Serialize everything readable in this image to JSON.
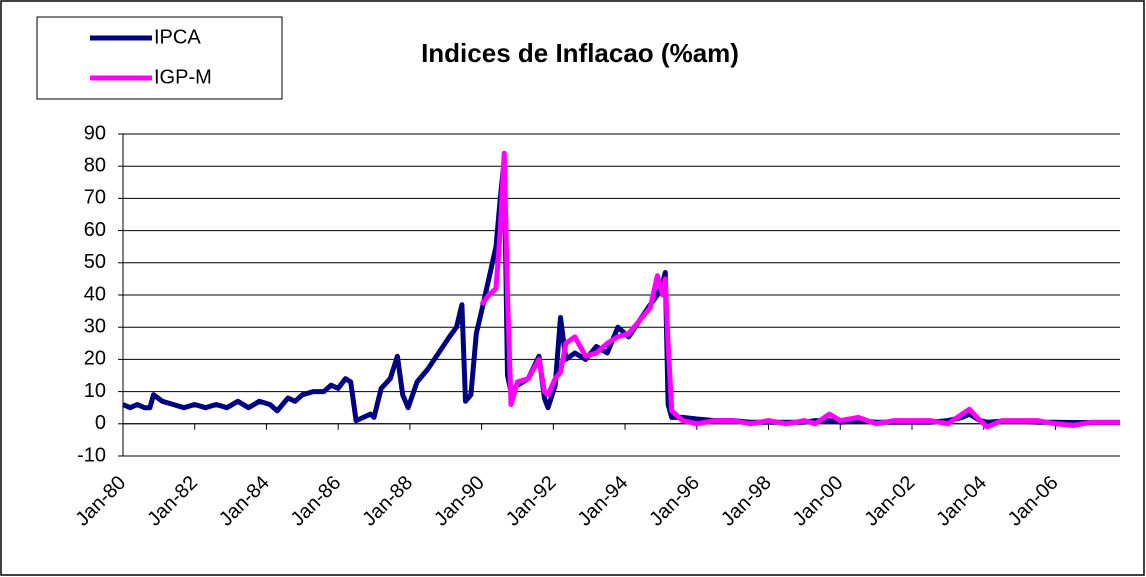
{
  "chart_data": {
    "type": "line",
    "title": "Indices de Inflacao (%am)",
    "x": [
      1980.0,
      1980.2,
      1980.4,
      1980.6,
      1980.75,
      1980.85,
      1981.1,
      1981.4,
      1981.7,
      1982.0,
      1982.3,
      1982.6,
      1982.9,
      1983.2,
      1983.5,
      1983.8,
      1984.1,
      1984.3,
      1984.6,
      1984.8,
      1985.0,
      1985.3,
      1985.6,
      1985.8,
      1986.0,
      1986.2,
      1986.35,
      1986.5,
      1986.7,
      1986.9,
      1987.0,
      1987.2,
      1987.45,
      1987.65,
      1987.8,
      1987.95,
      1988.2,
      1988.5,
      1988.8,
      1989.1,
      1989.3,
      1989.45,
      1989.55,
      1989.7,
      1989.85,
      1990.0,
      1990.2,
      1990.4,
      1990.52,
      1990.63,
      1990.72,
      1990.82,
      1991.0,
      1991.3,
      1991.6,
      1991.75,
      1991.85,
      1992.05,
      1992.2,
      1992.35,
      1992.6,
      1992.9,
      1993.2,
      1993.5,
      1993.8,
      1994.1,
      1994.4,
      1994.7,
      1994.9,
      1995.05,
      1995.12,
      1995.2,
      1995.3,
      1995.6,
      1996.0,
      1996.5,
      1997.0,
      1997.5,
      1998.0,
      1998.5,
      1999.0,
      1999.3,
      1999.7,
      2000.0,
      2000.5,
      2001.0,
      2001.5,
      2002.0,
      2002.5,
      2003.0,
      2003.4,
      2003.6,
      2003.9,
      2004.1,
      2004.5,
      2005.0,
      2005.5,
      2006.0,
      2006.5,
      2007.0,
      2007.5,
      2007.8
    ],
    "series": [
      {
        "name": "IPCA",
        "color": "#000080",
        "values": [
          6,
          5,
          6,
          5,
          5,
          9,
          7,
          6,
          5,
          6,
          5,
          6,
          5,
          7,
          5,
          7,
          6,
          4,
          8,
          7,
          9,
          10,
          10,
          12,
          11,
          14,
          13,
          1,
          2,
          3,
          2,
          11,
          14,
          21,
          9,
          5,
          13,
          17,
          22,
          27,
          30,
          37,
          7,
          9,
          28,
          35,
          45,
          55,
          70,
          82,
          15,
          10,
          12,
          14,
          21,
          8,
          5,
          12,
          33,
          20,
          22,
          20,
          24,
          22,
          30,
          27,
          32,
          37,
          40,
          44,
          47,
          6,
          2,
          2,
          1.5,
          1,
          1,
          0.5,
          0.5,
          0.5,
          0.5,
          1,
          1,
          0.5,
          1,
          0.5,
          0.5,
          0.5,
          0.5,
          1,
          2,
          3,
          1,
          0.5,
          0.8,
          0.8,
          0.5,
          0.5,
          0.4,
          0.4,
          0.4,
          0.4
        ]
      },
      {
        "name": "IGP-M",
        "color": "#ff00ff",
        "values": [
          null,
          null,
          null,
          null,
          null,
          null,
          null,
          null,
          null,
          null,
          null,
          null,
          null,
          null,
          null,
          null,
          null,
          null,
          null,
          null,
          null,
          null,
          null,
          null,
          null,
          null,
          null,
          null,
          null,
          null,
          null,
          null,
          null,
          null,
          null,
          null,
          null,
          null,
          null,
          null,
          null,
          null,
          null,
          null,
          null,
          37,
          40,
          42,
          60,
          84,
          40,
          6,
          13,
          14,
          20,
          10,
          9,
          14,
          16,
          25,
          27,
          21,
          22,
          25,
          27,
          28,
          32,
          36,
          46,
          40,
          45,
          25,
          4,
          1,
          0,
          1,
          1,
          0,
          1,
          0,
          1,
          0,
          3,
          1,
          2,
          0,
          1,
          1,
          1,
          0,
          3,
          4.5,
          1,
          -1,
          1,
          1,
          1,
          0,
          -0.5,
          0.5,
          0.5,
          0.5
        ]
      }
    ],
    "xlim": [
      1980,
      2007.8
    ],
    "xticks": [
      {
        "value": 1980,
        "label": "Jan-80"
      },
      {
        "value": 1982,
        "label": "Jan-82"
      },
      {
        "value": 1984,
        "label": "Jan-84"
      },
      {
        "value": 1986,
        "label": "Jan-86"
      },
      {
        "value": 1988,
        "label": "Jan-88"
      },
      {
        "value": 1990,
        "label": "Jan-90"
      },
      {
        "value": 1992,
        "label": "Jan-92"
      },
      {
        "value": 1994,
        "label": "Jan-94"
      },
      {
        "value": 1996,
        "label": "Jan-96"
      },
      {
        "value": 1998,
        "label": "Jan-98"
      },
      {
        "value": 2000,
        "label": "Jan-00"
      },
      {
        "value": 2002,
        "label": "Jan-02"
      },
      {
        "value": 2004,
        "label": "Jan-04"
      },
      {
        "value": 2006,
        "label": "Jan-06"
      }
    ],
    "ylim": [
      -10,
      90
    ],
    "yticks": [
      -10,
      0,
      10,
      20,
      30,
      40,
      50,
      60,
      70,
      80,
      90
    ],
    "grid": true,
    "legend": "top-left"
  }
}
